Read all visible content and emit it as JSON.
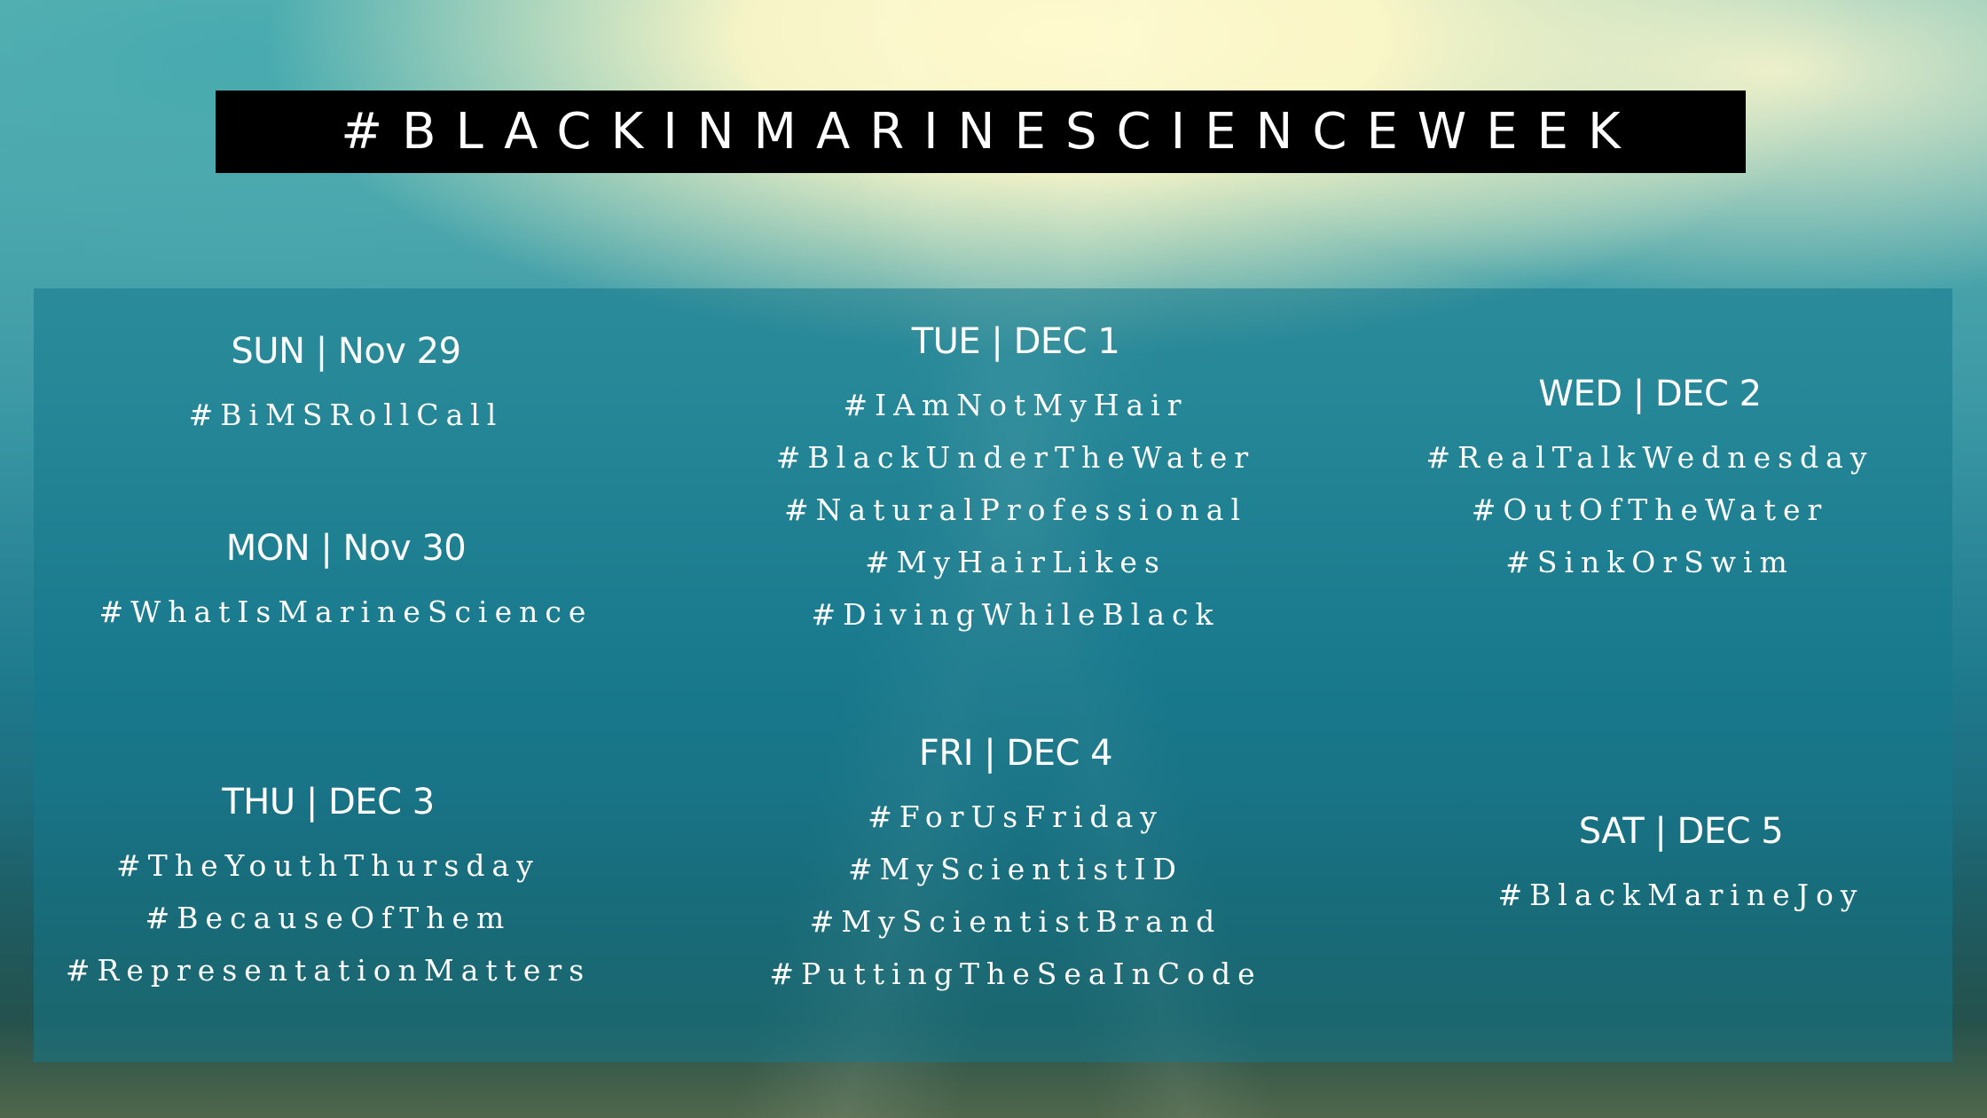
{
  "title": "#BLACKINMARINESCIENCEWEEK",
  "days": [
    {
      "heading": "SUN | Nov 29",
      "tags": [
        "#BiMSRollCall"
      ]
    },
    {
      "heading": "MON | Nov 30",
      "tags": [
        "#WhatIsMarineScience"
      ]
    },
    {
      "heading": "TUE | DEC 1",
      "tags": [
        "#IAmNotMyHair",
        "#BlackUnderTheWater",
        "#NaturalProfessional",
        "#MyHairLikes",
        "#DivingWhileBlack"
      ]
    },
    {
      "heading": "WED | DEC 2",
      "tags": [
        "#RealTalkWednesday",
        "#OutOfTheWater",
        "#SinkOrSwim"
      ]
    },
    {
      "heading": "THU | DEC 3",
      "tags": [
        "#TheYouthThursday",
        "#BecauseOfThem",
        "#RepresentationMatters"
      ]
    },
    {
      "heading": "FRI | DEC 4",
      "tags": [
        "#ForUsFriday",
        "#MyScientistID",
        "#MyScientistBrand",
        "#PuttingTheSeaInCode"
      ]
    },
    {
      "heading": "SAT | DEC 5",
      "tags": [
        "#BlackMarineJoy"
      ]
    }
  ],
  "colors": {
    "title_bg": "#000000",
    "text": "#ffffff",
    "panel": "#1a7c8e"
  }
}
